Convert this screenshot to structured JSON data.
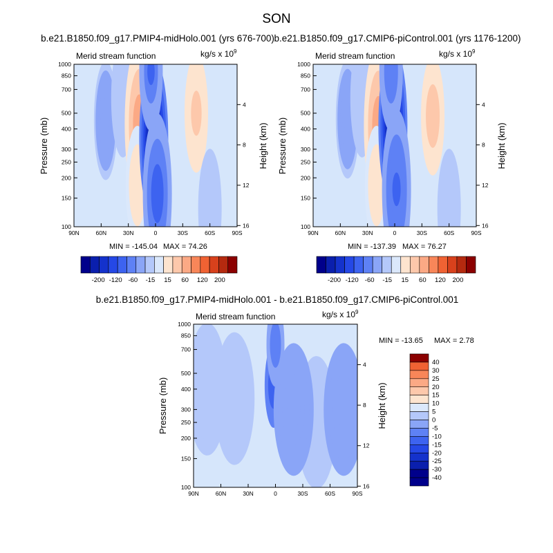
{
  "figure": {
    "title": "SON"
  },
  "colors": {
    "panel_scale": [
      "#00008b",
      "#0a1fad",
      "#1432cc",
      "#2548e6",
      "#3d63f0",
      "#5e81f5",
      "#8aa5f7",
      "#b4c8fa",
      "#dbe8fb",
      "#fde4cf",
      "#fdc8ab",
      "#fba985",
      "#f88659",
      "#f06233",
      "#d8411c",
      "#b52a0f",
      "#8b0000"
    ],
    "diff_scale": [
      "#00008b",
      "#0a1fad",
      "#1432cc",
      "#2548e6",
      "#3d63f0",
      "#5e81f5",
      "#8aa5f7",
      "#b4c8fa",
      "#dbe8fb",
      "#fde4cf",
      "#fdc8ab",
      "#fba985",
      "#f88659",
      "#f06233",
      "#d8411c",
      "#b52a0f",
      "#8b0000"
    ]
  },
  "chart_data": [
    {
      "type": "heatmap",
      "title": "b.e21.B1850.f09_g17.PMIP4-midHolo.001 (yrs 676-700)",
      "left_string": "Merid stream function",
      "right_string": "kg/s x 10",
      "right_string_exp": "9",
      "xlabel": "",
      "ylabel": "Pressure (mb)",
      "y2label": "Height (km)",
      "x_ticks": [
        "90N",
        "60N",
        "30N",
        "0",
        "30S",
        "60S",
        "90S"
      ],
      "y_ticks": [
        "100",
        "150",
        "200",
        "250",
        "300",
        "400",
        "500",
        "700",
        "850",
        "1000"
      ],
      "y2_ticks": [
        "16",
        "12",
        "8",
        "4"
      ],
      "min_label": "MIN = -145.04",
      "max_label": "MAX = 74.26",
      "colorbar_ticks": [
        "-200",
        "-120",
        "-60",
        "-15",
        "15",
        "60",
        "120",
        "200"
      ],
      "features": [
        {
          "lat": 55,
          "p": 450,
          "value": -38
        },
        {
          "lat": 36,
          "p": 620,
          "value": -5
        },
        {
          "lat": 18,
          "p": 430,
          "value": 72
        },
        {
          "lat": 20,
          "p": 180,
          "value": 30
        },
        {
          "lat": 2,
          "p": 350,
          "value": -145
        },
        {
          "lat": -2,
          "p": 160,
          "value": -70
        },
        {
          "lat": -45,
          "p": 500,
          "value": 52
        },
        {
          "lat": -60,
          "p": 130,
          "value": -10
        },
        {
          "lat": 5,
          "p": 900,
          "value": -60
        }
      ]
    },
    {
      "type": "heatmap",
      "title": "b.e21.B1850.f09_g17.CMIP6-piControl.001 (yrs 1176-1200)",
      "left_string": "Merid stream function",
      "right_string": "kg/s x 10",
      "right_string_exp": "9",
      "xlabel": "",
      "ylabel": "Pressure (mb)",
      "y2label": "Height (km)",
      "x_ticks": [
        "90N",
        "60N",
        "30N",
        "0",
        "30S",
        "60S",
        "90S"
      ],
      "y_ticks": [
        "100",
        "150",
        "200",
        "250",
        "300",
        "400",
        "500",
        "700",
        "850",
        "1000"
      ],
      "y2_ticks": [
        "16",
        "12",
        "8",
        "4"
      ],
      "min_label": "MIN = -137.39",
      "max_label": "MAX = 76.27",
      "colorbar_ticks": [
        "-200",
        "-120",
        "-60",
        "-15",
        "15",
        "60",
        "120",
        "200"
      ],
      "features": [
        {
          "lat": 52,
          "p": 460,
          "value": -36
        },
        {
          "lat": 36,
          "p": 620,
          "value": -4
        },
        {
          "lat": 18,
          "p": 420,
          "value": 70
        },
        {
          "lat": 20,
          "p": 180,
          "value": 28
        },
        {
          "lat": 2,
          "p": 420,
          "value": -137
        },
        {
          "lat": -2,
          "p": 170,
          "value": -68
        },
        {
          "lat": -42,
          "p": 480,
          "value": 55
        },
        {
          "lat": -60,
          "p": 130,
          "value": -8
        },
        {
          "lat": 4,
          "p": 900,
          "value": -55
        }
      ]
    },
    {
      "type": "heatmap",
      "title": "b.e21.B1850.f09_g17.PMIP4-midHolo.001 - b.e21.B1850.f09_g17.CMIP6-piControl.001",
      "left_string": "Merid stream function",
      "right_string": "kg/s x 10",
      "right_string_exp": "9",
      "xlabel": "",
      "ylabel": "Pressure (mb)",
      "y2label": "Height (km)",
      "x_ticks": [
        "90N",
        "60N",
        "30N",
        "0",
        "30S",
        "60S",
        "90S"
      ],
      "y_ticks": [
        "100",
        "150",
        "200",
        "250",
        "300",
        "400",
        "500",
        "700",
        "850",
        "1000"
      ],
      "y2_ticks": [
        "16",
        "12",
        "8",
        "4"
      ],
      "min_label": "MIN = -13.65",
      "max_label": "MAX =   2.78",
      "colorbar_ticks": [
        "40",
        "30",
        "25",
        "20",
        "15",
        "10",
        "5",
        "0",
        "-5",
        "-10",
        "-15",
        "-20",
        "-25",
        "-30",
        "-40"
      ],
      "features": [
        {
          "lat": 2,
          "p": 420,
          "value": -13
        },
        {
          "lat": 0,
          "p": 750,
          "value": -7
        },
        {
          "lat": 45,
          "p": 350,
          "value": 2.5
        },
        {
          "lat": -45,
          "p": 250,
          "value": 2.8
        },
        {
          "lat": -20,
          "p": 300,
          "value": -4
        },
        {
          "lat": 75,
          "p": 400,
          "value": 1.5
        },
        {
          "lat": -75,
          "p": 300,
          "value": -3
        }
      ]
    }
  ]
}
